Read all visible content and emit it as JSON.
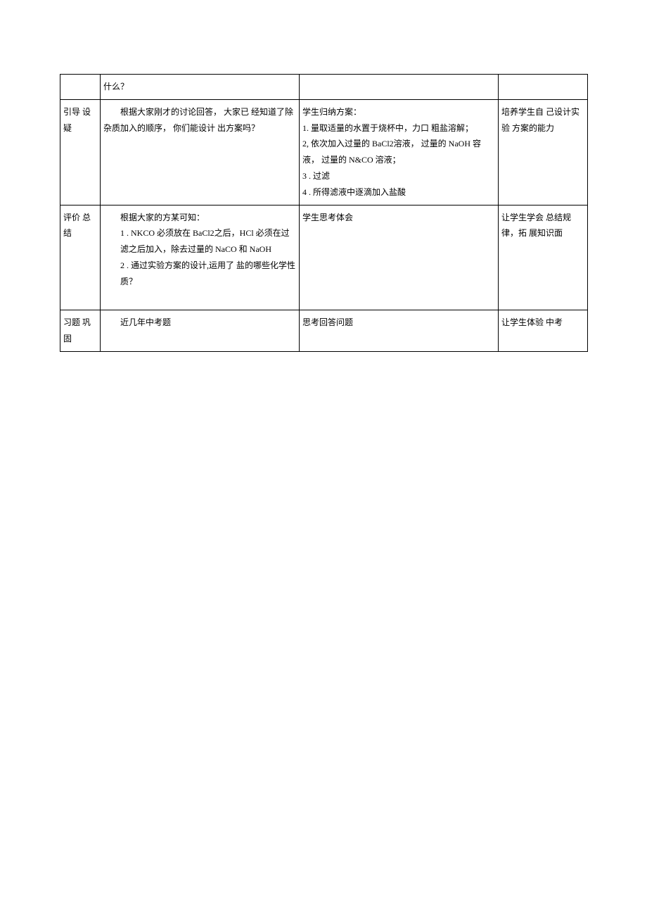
{
  "table": {
    "rows": [
      {
        "col1": "",
        "col2": "什么？",
        "col3": "",
        "col4": ""
      },
      {
        "col1": "引导 设疑",
        "col2_line1": "根据大家刚才的讨论回答， 大家已 经知道了除杂质加入的顺序， 你们能设计 出方案吗？",
        "col3_header": "学生归纳方案：",
        "col3_item1": "1. 量取适量的水置于烧杯中，力口 粗盐溶解；",
        "col3_item2": "2, 依次加入过量的 BaCl2溶液， 过量的 NaOH 容液， 过量的 N&CO 溶液；",
        "col3_item3": "3 . 过滤",
        "col3_item4": "4 . 所得滤液中逐滴加入盐酸",
        "col4": "培养学生自 己设计实验 方案的能力"
      },
      {
        "col1": "评价 总结",
        "col2_line1": "根据大家的方某可知：",
        "col2_item1": "1 . NKCO 必须放在 BaCl2之后，HCl 必须在过滤之后加入，除去过量的 NaCO 和 NaOH",
        "col2_item2": "2 . 通过实验方案的设计,运用了 盐的哪些化学性质？",
        "col3": "学生思考体会",
        "col4": "让学生学会 总结规律，拓 展知识面"
      },
      {
        "col1": "习题 巩固",
        "col2": "近几年中考题",
        "col3": "思考回答问题",
        "col4": "让学生体验 中考"
      }
    ]
  }
}
